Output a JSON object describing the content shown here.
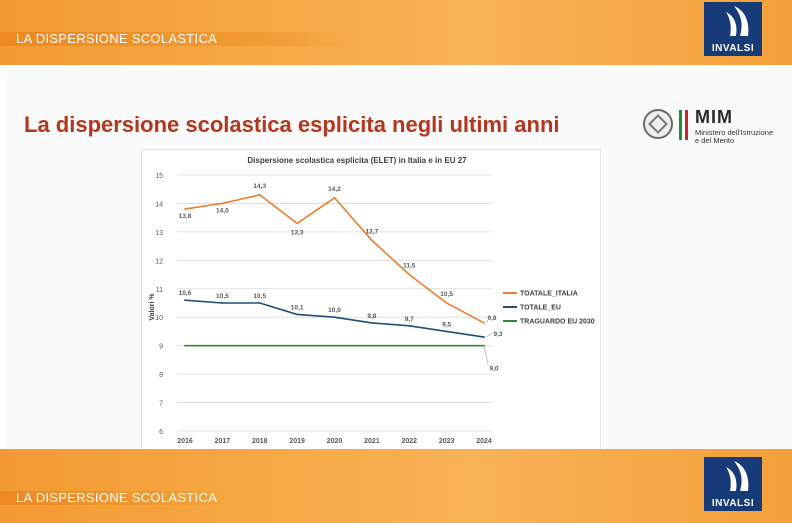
{
  "header": {
    "label": "LA DISPERSIONE SCOLASTICA",
    "logo_text": "INVALSI"
  },
  "footer": {
    "label": "LA DISPERSIONE SCOLASTICA",
    "logo_text": "INVALSI"
  },
  "slide": {
    "title": "La dispersione scolastica esplicita negli ultimi anni"
  },
  "ministry": {
    "acronym": "MIM",
    "line1": "Ministero dell'Istruzione",
    "line2": "e del Merito"
  },
  "colors": {
    "italia": "#ed7d31",
    "eu": "#1f4e79",
    "target": "#2e8b3a",
    "title_red": "#b5361c",
    "band_orange": "#f5a13c",
    "invalsi_blue": "#173a78"
  },
  "chart_data": {
    "type": "line",
    "title": "Dispersione scolastica esplicita (ELET) in Italia e in EU 27",
    "ylabel": "Valori %",
    "xlabel": "",
    "x": [
      "2016",
      "2017",
      "2018",
      "2019",
      "2020",
      "2021",
      "2022",
      "2023",
      "2024"
    ],
    "ylim": [
      6,
      15
    ],
    "yticks": [
      "6",
      "7",
      "8",
      "9",
      "10",
      "11",
      "12",
      "13",
      "14",
      "15"
    ],
    "legend_position": "right",
    "grid": true,
    "series": [
      {
        "name": "TOATALE_ITALIA",
        "color": "#ed7d31",
        "values": [
          13.8,
          14.0,
          14.3,
          13.3,
          14.2,
          12.7,
          11.5,
          10.5,
          9.8
        ],
        "labels": [
          "13,8",
          "14,0",
          "14,3",
          "13,3",
          "14,2",
          "12,7",
          "11,5",
          "10,5",
          "9,8"
        ]
      },
      {
        "name": "TOTALE_EU",
        "color": "#1f4e79",
        "values": [
          10.6,
          10.5,
          10.5,
          10.1,
          10.0,
          9.8,
          9.7,
          9.5,
          9.3
        ],
        "labels": [
          "10,6",
          "10,5",
          "10,5",
          "10,1",
          "10,0",
          "9,8",
          "9,7",
          "9,5",
          "9,3"
        ]
      },
      {
        "name": "TRAGUARDO EU 2030",
        "color": "#2e8b3a",
        "values": [
          9.0,
          9.0,
          9.0,
          9.0,
          9.0,
          9.0,
          9.0,
          9.0,
          9.0
        ],
        "labels": [
          "",
          "",
          "",
          "",
          "",
          "",
          "",
          "",
          "9,0"
        ]
      }
    ]
  }
}
